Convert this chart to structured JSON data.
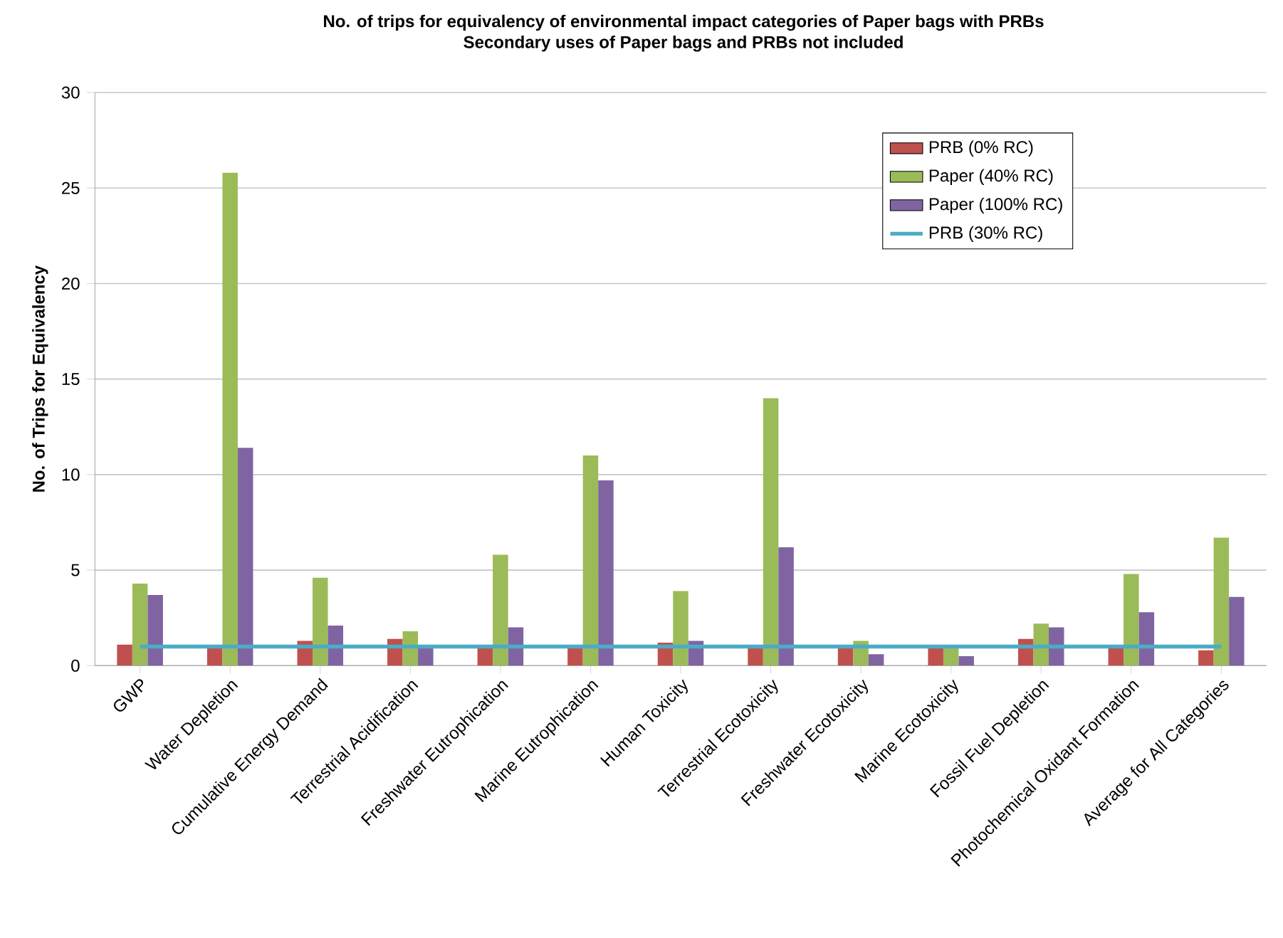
{
  "chart_data": {
    "type": "bar",
    "title": "No. of trips for equivalency of environmental impact categories of Paper bags with PRBs",
    "subtitle": "Secondary uses of Paper bags and PRBs not included",
    "ylabel": "No. of Trips for Equivalency",
    "categories": [
      "GWP",
      "Water Depletion",
      "Cumulative Energy Demand",
      "Terrestrial Acidification",
      "Freshwater Eutrophication",
      "Marine Eutrophication",
      "Human Toxicity",
      "Terrestrial Ecotoxicity",
      "Freshwater Ecotoxicity",
      "Marine Ecotoxicity",
      "Fossil Fuel Depletion",
      "Photochemical Oxidant Formation",
      "Average for All Categories"
    ],
    "series": [
      {
        "name": "PRB (0% RC)",
        "color": "#c0504d",
        "values": [
          1.1,
          1.0,
          1.3,
          1.4,
          1.0,
          1.0,
          1.2,
          1.0,
          1.0,
          1.0,
          1.4,
          1.0,
          0.8
        ]
      },
      {
        "name": "Paper (40% RC)",
        "color": "#9bbb59",
        "values": [
          4.3,
          25.8,
          4.6,
          1.8,
          5.8,
          11.0,
          3.9,
          14.0,
          1.3,
          1.0,
          2.2,
          4.8,
          6.7
        ]
      },
      {
        "name": "Paper (100% RC)",
        "color": "#8064a2",
        "values": [
          3.7,
          11.4,
          2.1,
          1.0,
          2.0,
          9.7,
          1.3,
          6.2,
          0.6,
          0.5,
          2.0,
          2.8,
          3.6
        ]
      },
      {
        "name": "PRB (30% RC)",
        "type": "line",
        "color": "#4bacc6",
        "values": [
          1.0,
          1.0,
          1.0,
          1.0,
          1.0,
          1.0,
          1.0,
          1.0,
          1.0,
          1.0,
          1.0,
          1.0,
          1.0
        ]
      }
    ],
    "ylim": [
      0,
      30
    ],
    "yticks": [
      0,
      5,
      10,
      15,
      20,
      25,
      30
    ],
    "grid": "y",
    "legend": "top right"
  }
}
